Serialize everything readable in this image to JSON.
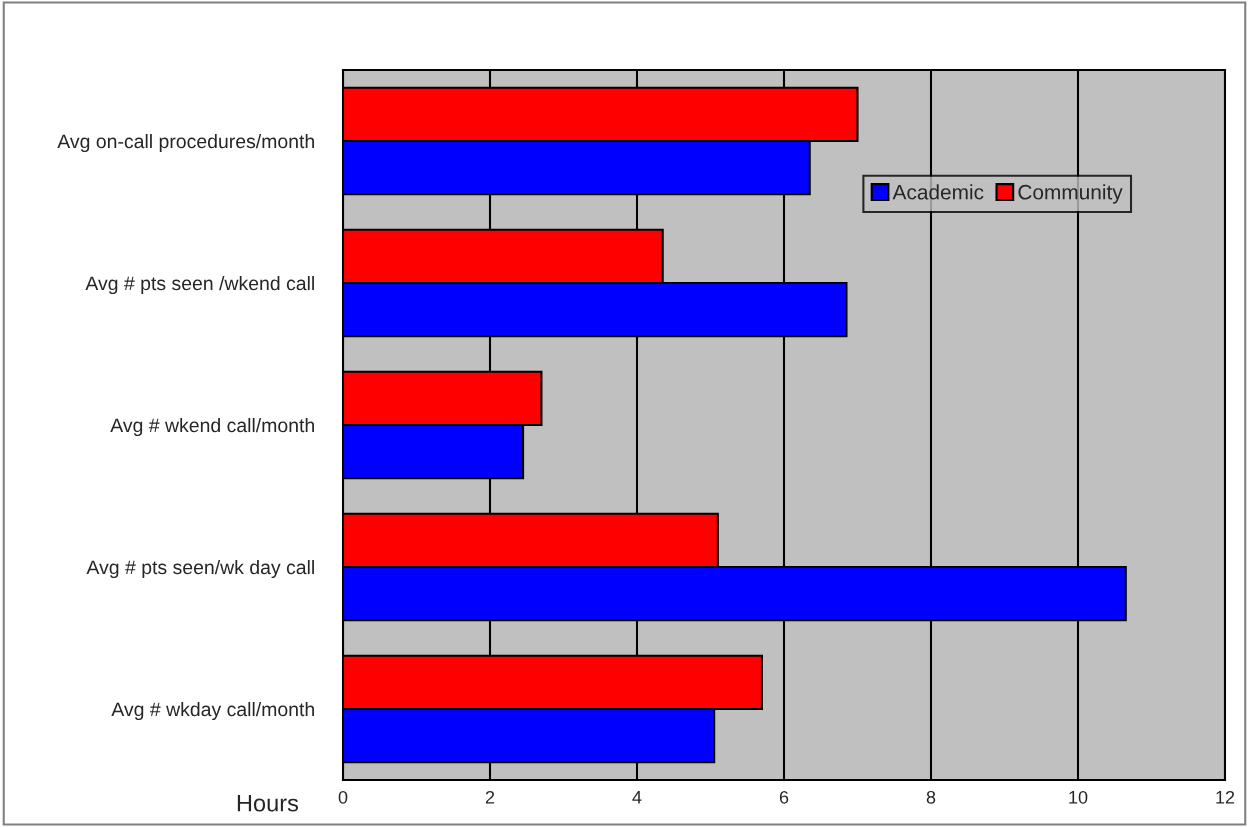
{
  "chart_data": {
    "type": "bar",
    "orientation": "horizontal",
    "xlabel": "Hours",
    "categories": [
      "Avg on-call procedures/month",
      "Avg # pts seen /wkend call",
      "Avg # wkend call/month",
      "Avg # pts seen/wk day call",
      "Avg # wkday call/month"
    ],
    "series": [
      {
        "name": "Academic",
        "color": "#0000ff",
        "values": [
          6.35,
          6.85,
          2.45,
          10.65,
          5.05
        ]
      },
      {
        "name": "Community",
        "color": "#ff0000",
        "values": [
          7.0,
          4.35,
          2.7,
          5.1,
          5.7
        ]
      }
    ],
    "xlim": [
      0,
      12
    ],
    "xticks": [
      0,
      2,
      4,
      6,
      8,
      10,
      12
    ],
    "grid": "x",
    "legend": "top right"
  }
}
